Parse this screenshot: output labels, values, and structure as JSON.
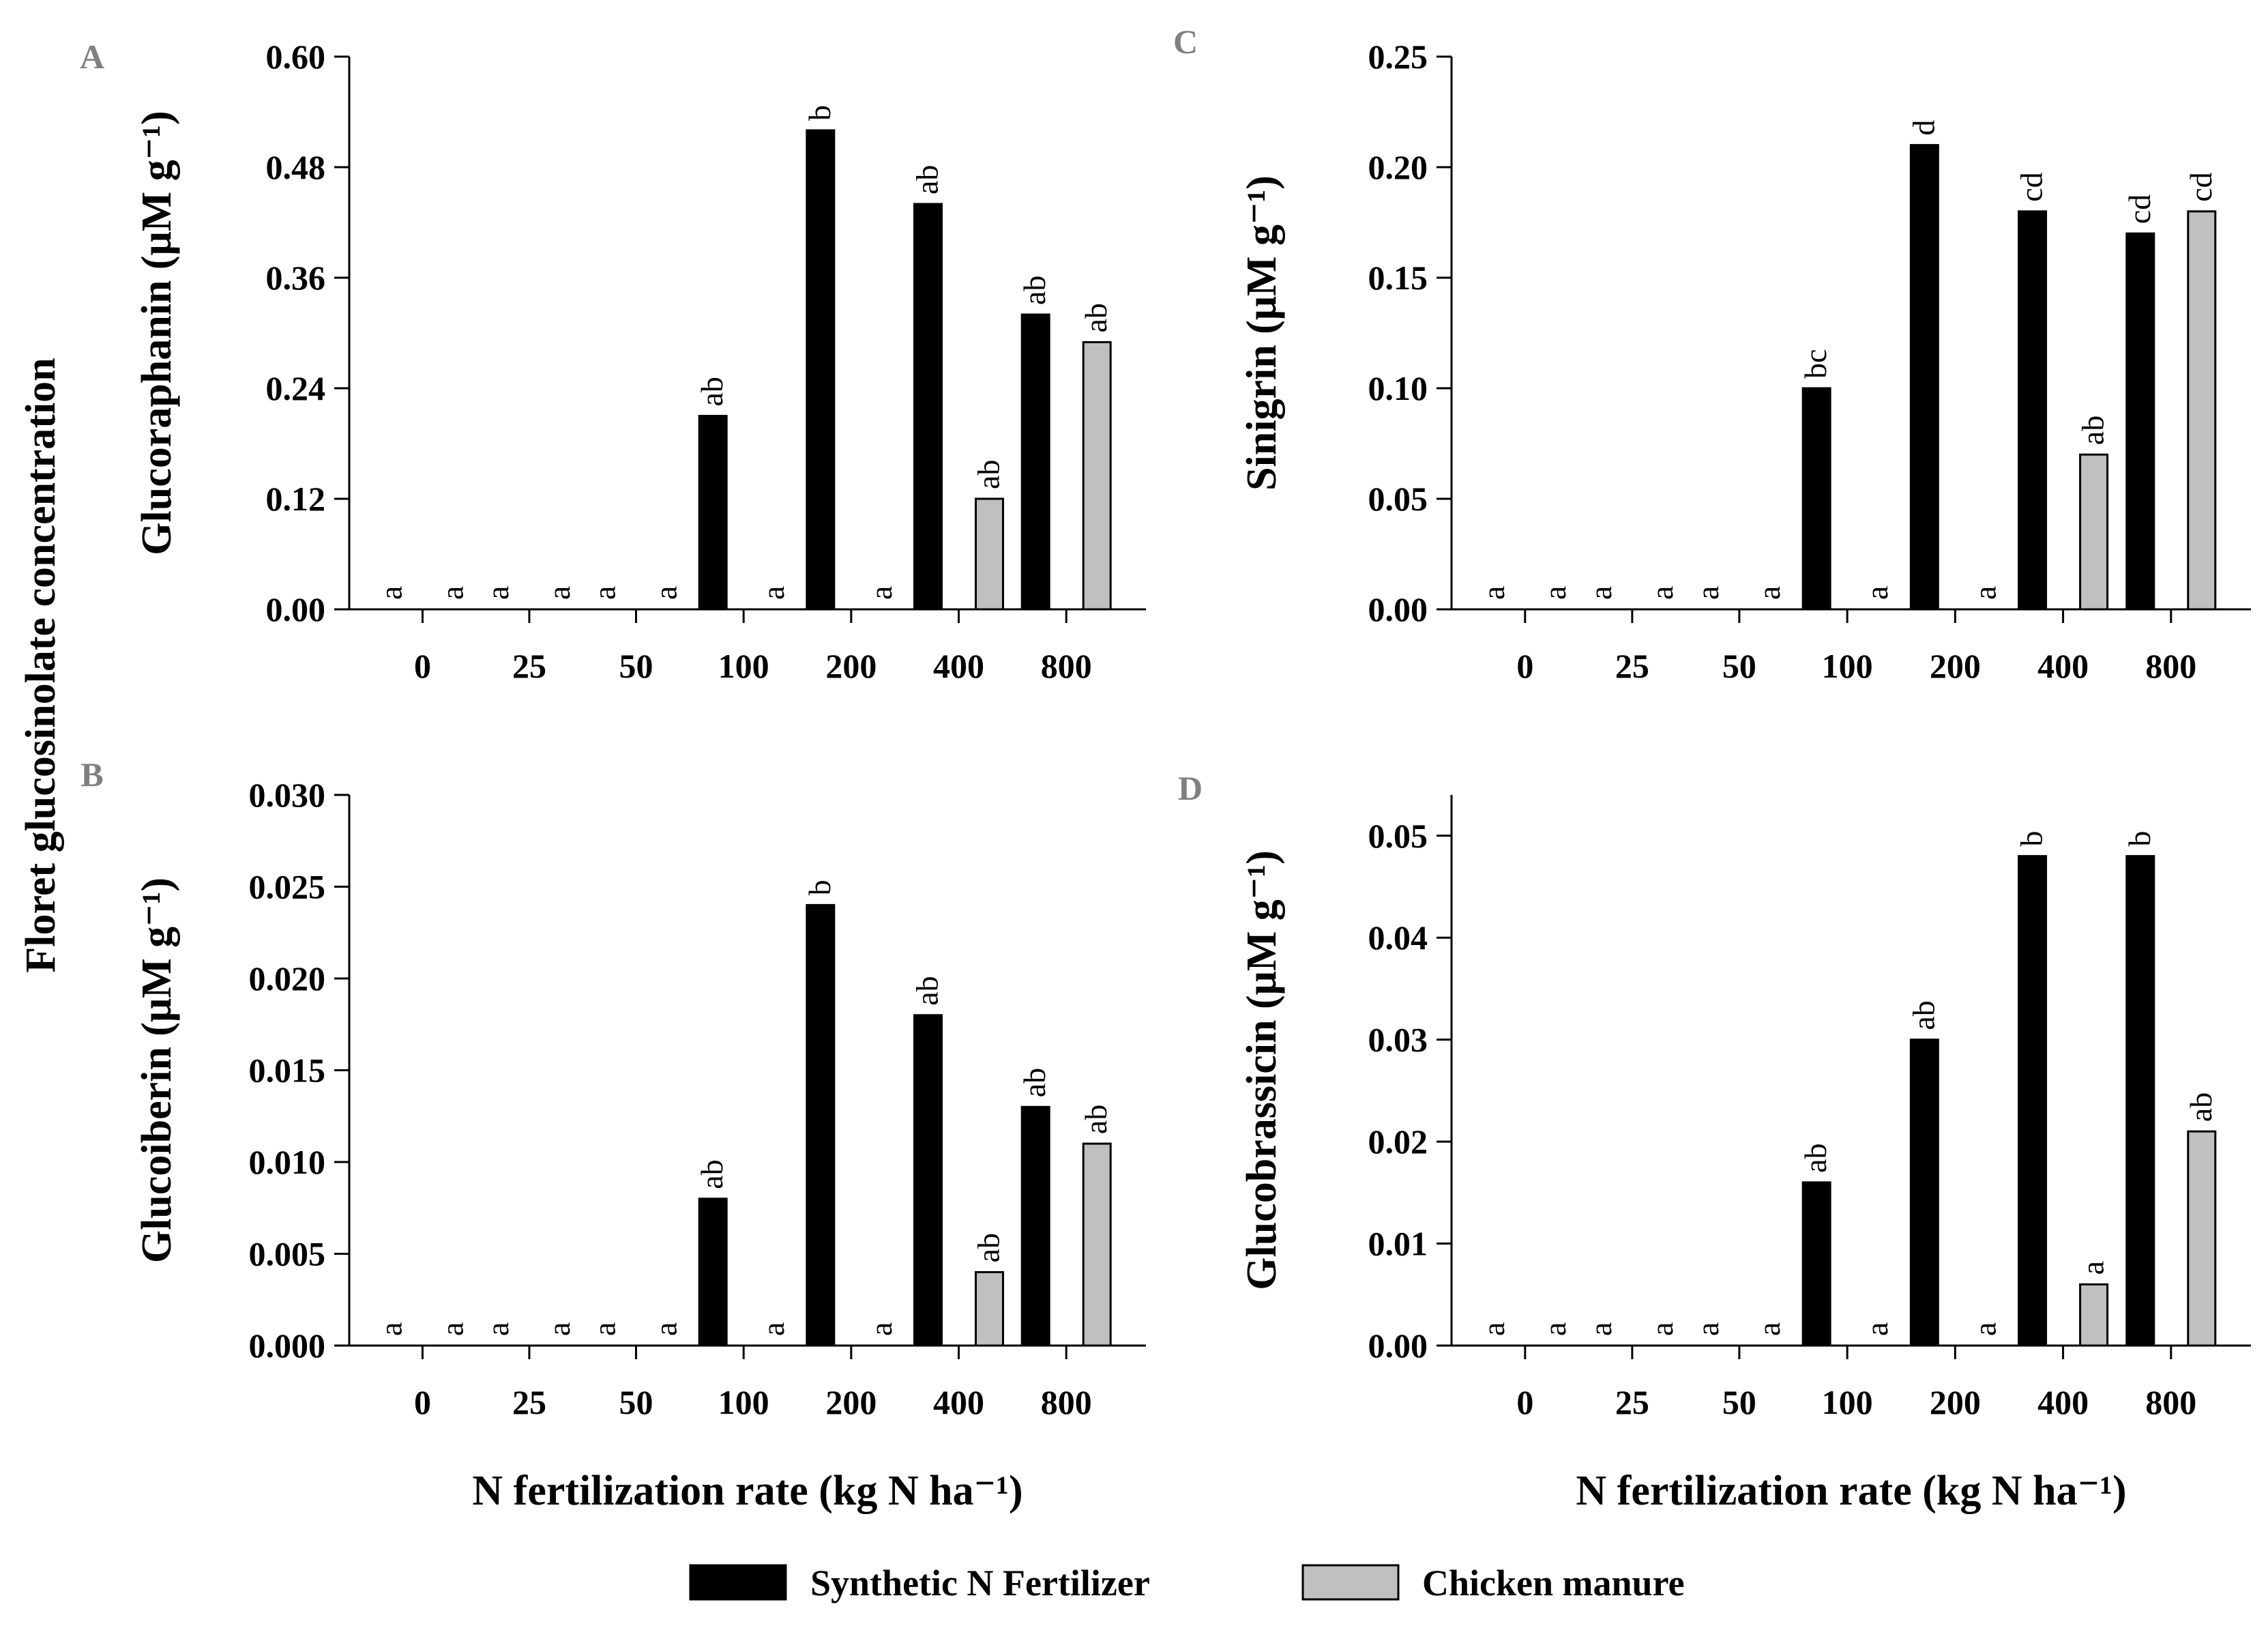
{
  "figure": {
    "shared_ylabel": "Floret glucosinolate concentration",
    "colors": {
      "synthetic": "#000000",
      "manure": "#c0c0c0",
      "axis": "#000000",
      "panel_letter": "#808080"
    }
  },
  "legend": {
    "items": [
      {
        "label": "Synthetic N Fertilizer",
        "color": "#000000"
      },
      {
        "label": "Chicken manure",
        "color": "#c0c0c0"
      }
    ]
  },
  "chart_data": [
    {
      "panel": "A",
      "type": "bar",
      "ylabel": "Glucoraphanin (μM g⁻¹)",
      "xlabel": "",
      "categories": [
        "0",
        "25",
        "50",
        "100",
        "200",
        "400",
        "800"
      ],
      "ylim": [
        0,
        0.6
      ],
      "yticks": [
        "0.00",
        "0.12",
        "0.24",
        "0.36",
        "0.48",
        "0.60"
      ],
      "series": [
        {
          "name": "Synthetic N Fertilizer",
          "values": [
            0,
            0,
            0,
            0.21,
            0.52,
            0.44,
            0.32
          ],
          "letters": [
            "a",
            "a",
            "a",
            "ab",
            "b",
            "ab",
            "ab"
          ]
        },
        {
          "name": "Chicken manure",
          "values": [
            0,
            0,
            0,
            0,
            0,
            0.12,
            0.29
          ],
          "letters": [
            "a",
            "a",
            "a",
            "a",
            "a",
            "ab",
            "ab"
          ]
        }
      ]
    },
    {
      "panel": "C",
      "type": "bar",
      "ylabel": "Sinigrin (μM g⁻¹)",
      "xlabel": "",
      "categories": [
        "0",
        "25",
        "50",
        "100",
        "200",
        "400",
        "800"
      ],
      "ylim": [
        0,
        0.25
      ],
      "yticks": [
        "0.00",
        "0.05",
        "0.10",
        "0.15",
        "0.20",
        "0.25"
      ],
      "series": [
        {
          "name": "Synthetic N Fertilizer",
          "values": [
            0,
            0,
            0,
            0.1,
            0.21,
            0.18,
            0.17
          ],
          "letters": [
            "a",
            "a",
            "a",
            "bc",
            "d",
            "cd",
            "cd"
          ]
        },
        {
          "name": "Chicken manure",
          "values": [
            0,
            0,
            0,
            0,
            0,
            0.07,
            0.18
          ],
          "letters": [
            "a",
            "a",
            "a",
            "a",
            "a",
            "ab",
            "cd"
          ]
        }
      ]
    },
    {
      "panel": "B",
      "type": "bar",
      "ylabel": "Glucoiberin (μM g⁻¹)",
      "xlabel": "N fertilization rate (kg N ha⁻¹)",
      "categories": [
        "0",
        "25",
        "50",
        "100",
        "200",
        "400",
        "800"
      ],
      "ylim": [
        0,
        0.03
      ],
      "yticks": [
        "0.000",
        "0.005",
        "0.010",
        "0.015",
        "0.020",
        "0.025",
        "0.030"
      ],
      "series": [
        {
          "name": "Synthetic N Fertilizer",
          "values": [
            0,
            0,
            0,
            0.008,
            0.024,
            0.018,
            0.013
          ],
          "letters": [
            "a",
            "a",
            "a",
            "ab",
            "b",
            "ab",
            "ab"
          ]
        },
        {
          "name": "Chicken manure",
          "values": [
            0,
            0,
            0,
            0,
            0,
            0.004,
            0.011
          ],
          "letters": [
            "a",
            "a",
            "a",
            "a",
            "a",
            "ab",
            "ab"
          ]
        }
      ]
    },
    {
      "panel": "D",
      "type": "bar",
      "ylabel": "Glucobrassicin (μM g⁻¹)",
      "xlabel": "N fertilization rate (kg N ha⁻¹)",
      "categories": [
        "0",
        "25",
        "50",
        "100",
        "200",
        "400",
        "800"
      ],
      "ylim": [
        0,
        0.054
      ],
      "yticks": [
        "0.00",
        "0.01",
        "0.02",
        "0.03",
        "0.04",
        "0.05"
      ],
      "series": [
        {
          "name": "Synthetic N Fertilizer",
          "values": [
            0,
            0,
            0,
            0.016,
            0.03,
            0.048,
            0.048
          ],
          "letters": [
            "a",
            "a",
            "a",
            "ab",
            "ab",
            "b",
            "b"
          ]
        },
        {
          "name": "Chicken manure",
          "values": [
            0,
            0,
            0,
            0,
            0,
            0.006,
            0.021
          ],
          "letters": [
            "a",
            "a",
            "a",
            "a",
            "a",
            "a",
            "ab"
          ]
        }
      ]
    }
  ]
}
